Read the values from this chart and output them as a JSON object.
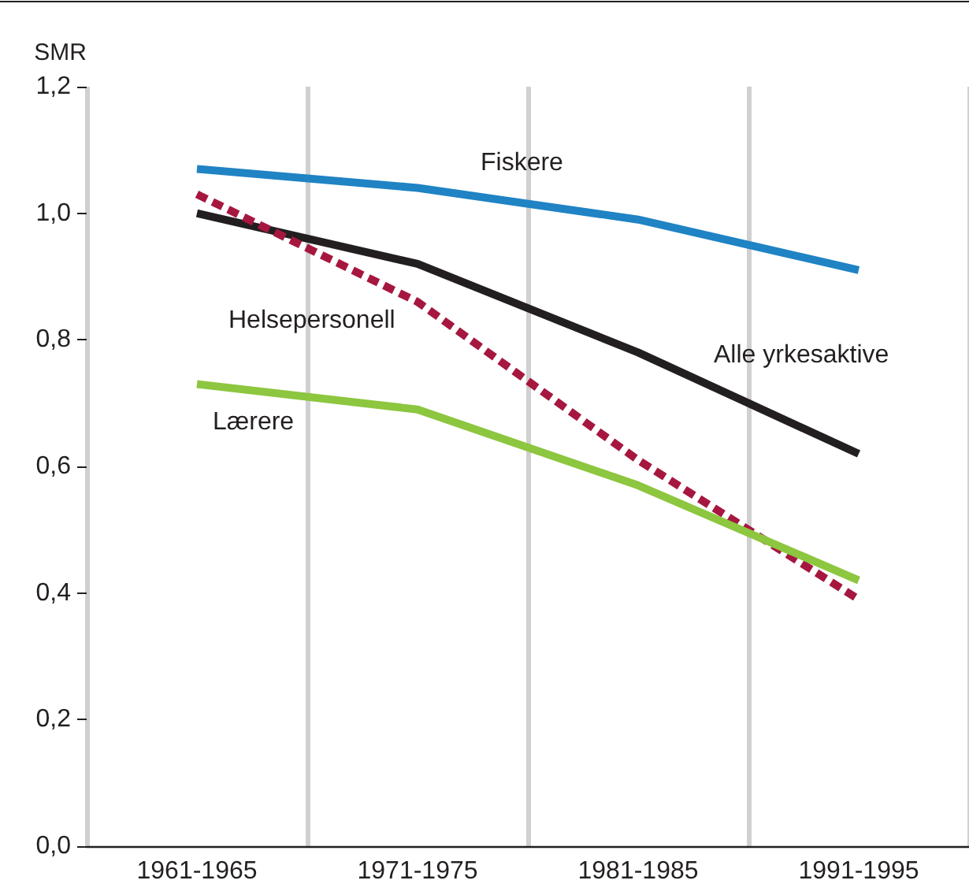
{
  "chart_data": {
    "type": "line",
    "ylabel": "SMR",
    "categories": [
      "1961-1965",
      "1971-1975",
      "1981-1985",
      "1991-1995"
    ],
    "series": [
      {
        "name": "Fiskere",
        "color": "#1f83c4",
        "values": [
          1.07,
          1.04,
          0.99,
          0.91
        ]
      },
      {
        "name": "Alle yrkesaktive",
        "color": "#231f20",
        "values": [
          1.0,
          0.92,
          0.78,
          0.62
        ]
      },
      {
        "name": "Helsepersonell",
        "color": "#a6173f",
        "line_style": "dashed",
        "values": [
          1.03,
          0.86,
          0.61,
          0.39
        ]
      },
      {
        "name": "Lærere",
        "color": "#8dc63f",
        "values": [
          0.73,
          0.69,
          0.57,
          0.42
        ]
      }
    ],
    "ylim": [
      0,
      1.2
    ],
    "yticks": [
      {
        "value": 0,
        "label": "0,0"
      },
      {
        "value": 0.2,
        "label": "0,2"
      },
      {
        "value": 0.4,
        "label": "0,4"
      },
      {
        "value": 0.6,
        "label": "0,6"
      },
      {
        "value": 0.8,
        "label": "0,8"
      },
      {
        "value": 1.0,
        "label": "1,0"
      },
      {
        "value": 1.2,
        "label": "1,2"
      }
    ],
    "grid": "x",
    "legend": false,
    "marker": "none",
    "line_style": "solid"
  }
}
